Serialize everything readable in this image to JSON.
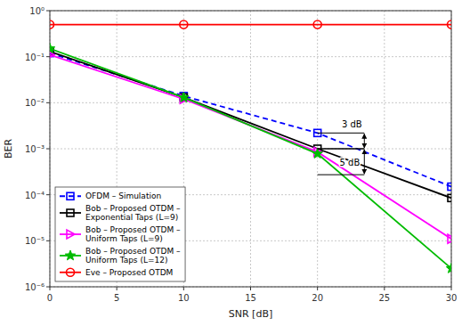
{
  "chart_data": {
    "type": "line",
    "x": [
      0,
      10,
      20,
      30
    ],
    "xlabel": "SNR [dB]",
    "ylabel": "BER",
    "log": "y",
    "xlim": [
      0,
      30
    ],
    "ylim": [
      1e-06,
      1.0
    ],
    "xticks": [
      0,
      5,
      10,
      15,
      20,
      25,
      30
    ],
    "yticks": [
      {
        "value": 1e-06,
        "label": "10⁻⁶"
      },
      {
        "value": 1e-05,
        "label": "10⁻⁵"
      },
      {
        "value": 0.0001,
        "label": "10⁻⁴"
      },
      {
        "value": 0.001,
        "label": "10⁻³"
      },
      {
        "value": 0.01,
        "label": "10⁻²"
      },
      {
        "value": 0.1,
        "label": "10⁻¹"
      },
      {
        "value": 1,
        "label": "10⁰"
      }
    ],
    "grid": true,
    "legend": "lower left",
    "series": [
      {
        "name": "OFDM – Simulation",
        "color": "#0000ff",
        "marker": "square",
        "line_style": "dashed",
        "values": [
          0.12,
          0.014,
          0.0022,
          0.00015
        ]
      },
      {
        "name": "Bob – Proposed OTDM –\nExponential Taps (L=9)",
        "color": "#000000",
        "marker": "square",
        "line_style": "solid",
        "values": [
          0.13,
          0.013,
          0.001,
          8.5e-05
        ]
      },
      {
        "name": "Bob – Proposed OTDM –\nUniform Taps (L=9)",
        "color": "#ff00ff",
        "marker": "triangle-right",
        "line_style": "solid",
        "values": [
          0.11,
          0.012,
          0.00085,
          1.1e-05
        ]
      },
      {
        "name": "Bob – Proposed OTDM –\nUniform Taps (L=12)",
        "color": "#00bb00",
        "marker": "star",
        "line_style": "solid",
        "values": [
          0.15,
          0.013,
          0.00078,
          2.5e-06
        ]
      },
      {
        "name": "Eve – Proposed OTDM",
        "color": "#ff0000",
        "marker": "circle",
        "line_style": "solid",
        "values": [
          0.5,
          0.5,
          0.5,
          0.5
        ]
      }
    ],
    "annotations": [
      {
        "text": "3 dB",
        "x_from": 20,
        "x_to": 23.5,
        "y_from": 0.0022,
        "y_to": 0.001
      },
      {
        "text": "5 dB",
        "x_from": 20,
        "x_to": 23.5,
        "y_from": 0.001,
        "y_to": 0.000273
      }
    ]
  }
}
